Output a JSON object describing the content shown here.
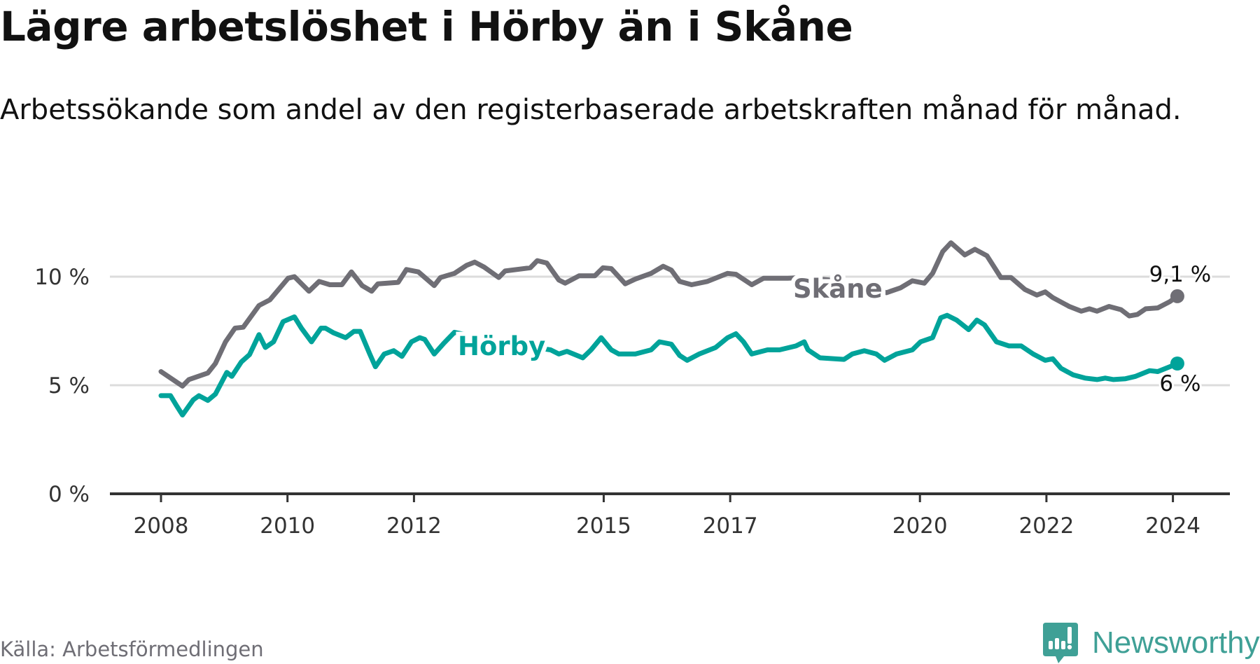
{
  "header": {
    "title": "Lägre arbetslöshet i Hörby än i Skåne",
    "subtitle": "Arbetssökande som andel av den registerbaserade arbetskraften månad för månad."
  },
  "footer": {
    "source": "Källa: Arbetsförmedlingen",
    "logo_text": "Newsworthy"
  },
  "colors": {
    "skane": "#6f6e75",
    "horby": "#00a39a",
    "grid": "#dcdcdc",
    "axis": "#333333"
  },
  "chart_data": {
    "type": "line",
    "title": "Lägre arbetslöshet i Hörby än i Skåne",
    "xlabel": "",
    "ylabel": "",
    "xlim": [
      2008,
      2024.5
    ],
    "ylim": [
      0,
      12
    ],
    "y_ticks": [
      0,
      5,
      10
    ],
    "y_tick_labels": [
      "0 %",
      "5 %",
      "10 %"
    ],
    "x_ticks": [
      2008,
      2010,
      2012,
      2015,
      2017,
      2020,
      2022,
      2024
    ],
    "x_tick_labels": [
      "2008",
      "2010",
      "2012",
      "2015",
      "2017",
      "2020",
      "2022",
      "2024"
    ],
    "grid": true,
    "series": [
      {
        "name": "Skåne",
        "color": "#6f6e75",
        "end_label": "9,1 %",
        "x": [
          2008.0,
          2008.34,
          2008.44,
          2008.74,
          2008.86,
          2009.02,
          2009.17,
          2009.3,
          2009.55,
          2009.72,
          2010.01,
          2010.11,
          2010.34,
          2010.5,
          2010.67,
          2010.86,
          2011.01,
          2011.18,
          2011.33,
          2011.43,
          2011.75,
          2011.88,
          2012.07,
          2012.32,
          2012.42,
          2012.64,
          2012.83,
          2012.96,
          2013.11,
          2013.34,
          2013.44,
          2013.84,
          2013.95,
          2014.1,
          2014.29,
          2014.39,
          2014.61,
          2014.86,
          2014.99,
          2015.12,
          2015.34,
          2015.5,
          2015.75,
          2015.94,
          2016.07,
          2016.2,
          2016.39,
          2016.64,
          2016.96,
          2017.09,
          2017.34,
          2017.53,
          2017.91,
          2018.17,
          2018.8,
          2019.47,
          2019.69,
          2019.88,
          2020.07,
          2020.2,
          2020.36,
          2020.49,
          2020.71,
          2020.87,
          2021.06,
          2021.28,
          2021.44,
          2021.66,
          2021.85,
          2021.98,
          2022.1,
          2022.36,
          2022.55,
          2022.68,
          2022.8,
          2022.99,
          2023.18,
          2023.31,
          2023.44,
          2023.57,
          2023.76,
          2023.95,
          2024.07
        ],
        "values": [
          5.63,
          4.96,
          5.26,
          5.56,
          6.0,
          7.0,
          7.63,
          7.67,
          8.67,
          8.93,
          9.93,
          10.0,
          9.33,
          9.78,
          9.63,
          9.63,
          10.22,
          9.59,
          9.33,
          9.67,
          9.74,
          10.33,
          10.22,
          9.59,
          9.96,
          10.15,
          10.52,
          10.67,
          10.44,
          9.96,
          10.26,
          10.41,
          10.74,
          10.63,
          9.85,
          9.7,
          10.04,
          10.04,
          10.41,
          10.37,
          9.67,
          9.89,
          10.15,
          10.48,
          10.3,
          9.78,
          9.63,
          9.78,
          10.15,
          10.11,
          9.63,
          9.93,
          9.93,
          9.96,
          9.78,
          9.26,
          9.48,
          9.81,
          9.7,
          10.15,
          11.15,
          11.56,
          11.0,
          11.26,
          10.96,
          9.96,
          9.96,
          9.41,
          9.15,
          9.3,
          9.04,
          8.63,
          8.41,
          8.52,
          8.41,
          8.63,
          8.48,
          8.19,
          8.26,
          8.52,
          8.56,
          8.85,
          9.1
        ]
      },
      {
        "name": "Hörby",
        "color": "#00a39a",
        "end_label": "6 %",
        "x": [
          2008.0,
          2008.15,
          2008.25,
          2008.34,
          2008.51,
          2008.6,
          2008.74,
          2008.86,
          2009.04,
          2009.12,
          2009.27,
          2009.4,
          2009.55,
          2009.65,
          2009.78,
          2009.93,
          2010.11,
          2010.22,
          2010.38,
          2010.53,
          2010.6,
          2010.73,
          2010.92,
          2011.05,
          2011.15,
          2011.3,
          2011.39,
          2011.53,
          2011.68,
          2011.81,
          2011.96,
          2012.09,
          2012.17,
          2012.32,
          2012.47,
          2012.64,
          2013.34,
          2014.16,
          2014.29,
          2014.42,
          2014.67,
          2014.8,
          2014.96,
          2015.12,
          2015.24,
          2015.5,
          2015.75,
          2015.88,
          2016.07,
          2016.2,
          2016.32,
          2016.51,
          2016.77,
          2016.96,
          2017.09,
          2017.21,
          2017.34,
          2017.59,
          2017.78,
          2018.04,
          2018.17,
          2018.23,
          2018.42,
          2018.8,
          2018.93,
          2019.12,
          2019.31,
          2019.44,
          2019.63,
          2019.88,
          2020.01,
          2020.2,
          2020.33,
          2020.43,
          2020.58,
          2020.77,
          2020.9,
          2021.02,
          2021.21,
          2021.41,
          2021.6,
          2021.79,
          2021.98,
          2022.1,
          2022.23,
          2022.42,
          2022.61,
          2022.8,
          2022.93,
          2023.06,
          2023.25,
          2023.41,
          2023.63,
          2023.76,
          2023.95,
          2024.07
        ],
        "values": [
          4.52,
          4.52,
          4.04,
          3.63,
          4.33,
          4.52,
          4.3,
          4.59,
          5.59,
          5.41,
          6.07,
          6.41,
          7.33,
          6.74,
          7.0,
          7.93,
          8.15,
          7.63,
          7.0,
          7.63,
          7.63,
          7.41,
          7.19,
          7.48,
          7.48,
          6.44,
          5.85,
          6.44,
          6.59,
          6.33,
          7.0,
          7.19,
          7.11,
          6.44,
          6.93,
          7.44,
          7.0,
          6.63,
          6.44,
          6.56,
          6.26,
          6.63,
          7.19,
          6.63,
          6.44,
          6.44,
          6.63,
          7.0,
          6.89,
          6.37,
          6.15,
          6.44,
          6.74,
          7.19,
          7.37,
          7.0,
          6.44,
          6.63,
          6.63,
          6.81,
          7.0,
          6.63,
          6.26,
          6.19,
          6.44,
          6.59,
          6.44,
          6.15,
          6.44,
          6.63,
          7.0,
          7.19,
          8.11,
          8.22,
          8.0,
          7.56,
          8.0,
          7.78,
          7.0,
          6.81,
          6.81,
          6.44,
          6.15,
          6.22,
          5.78,
          5.48,
          5.33,
          5.26,
          5.33,
          5.26,
          5.3,
          5.41,
          5.67,
          5.63,
          5.85,
          6.0
        ]
      }
    ],
    "annotations": [
      {
        "text": "Skåne",
        "series": "Skåne"
      },
      {
        "text": "Hörby",
        "series": "Hörby"
      }
    ]
  }
}
